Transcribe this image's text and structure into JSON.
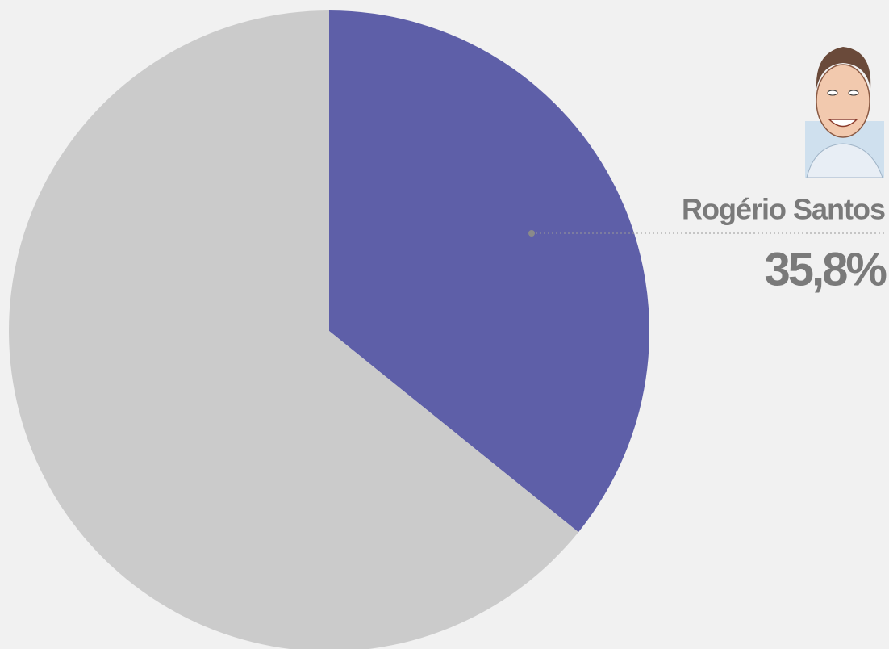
{
  "chart_data": {
    "type": "pie",
    "categories": [
      "Rogério Santos",
      null
    ],
    "values": [
      35.8,
      64.2
    ],
    "value_labels": [
      "35,8%",
      null
    ],
    "colors": [
      "#5e5fa8",
      "#cbcbcb"
    ]
  }
}
